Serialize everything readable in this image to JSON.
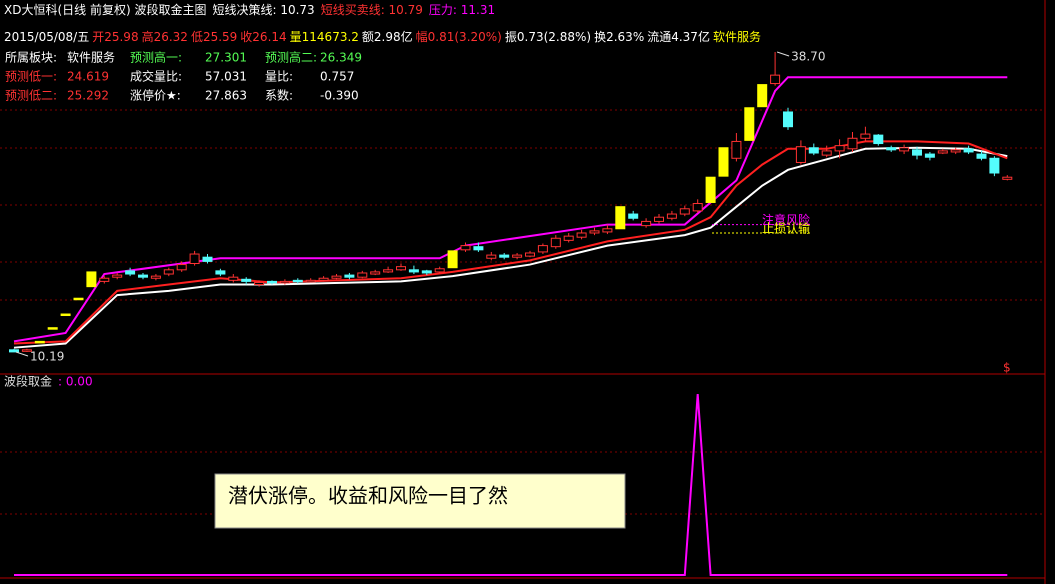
{
  "header": {
    "title": [
      {
        "text": "XD大恒科(日线 前复权) 波段取金主图",
        "color": "#ffffff"
      },
      {
        "text": "短线决策线: 10.73",
        "color": "#ffffff"
      },
      {
        "text": "短线买卖线: 10.79",
        "color": "#ff3232"
      },
      {
        "text": "压力: 11.31",
        "color": "#ff00ff"
      }
    ],
    "info": [
      {
        "text": "2015/05/08/五",
        "color": "#ffffff"
      },
      {
        "text": "开25.98",
        "color": "#ff3232"
      },
      {
        "text": "高26.32",
        "color": "#ff3232"
      },
      {
        "text": "低25.59",
        "color": "#ff3232"
      },
      {
        "text": "收26.14",
        "color": "#ff3232"
      },
      {
        "text": "量114673.2",
        "color": "#ffff00"
      },
      {
        "text": "额2.98亿",
        "color": "#ffffff"
      },
      {
        "text": "幅0.81(3.20%)",
        "color": "#ff3232"
      },
      {
        "text": "振0.73(2.88%)",
        "color": "#ffffff"
      },
      {
        "text": "换2.63%",
        "color": "#ffffff"
      },
      {
        "text": "流通4.37亿",
        "color": "#ffffff"
      },
      {
        "text": "软件服务",
        "color": "#ffff00"
      }
    ],
    "table": [
      [
        {
          "label": "所属板块:",
          "value": "软件服务",
          "color": "#ffffff"
        },
        {
          "label": "预测高一:",
          "value": "27.301",
          "color": "#54fc54"
        },
        {
          "label": "预测高二:",
          "value": "26.349",
          "color": "#54fc54"
        }
      ],
      [
        {
          "label": "预测低一:",
          "value": "24.619",
          "color": "#ff3232"
        },
        {
          "label": "成交量比:",
          "value": "57.031",
          "color": "#ffffff"
        },
        {
          "label": "量比:",
          "value": "0.757",
          "color": "#ffffff"
        }
      ],
      [
        {
          "label": "预测低二:",
          "value": "25.292",
          "color": "#ff3232"
        },
        {
          "label": "涨停价★:",
          "value": "27.863",
          "color": "#ffffff"
        },
        {
          "label": "系数:",
          "value": "-0.390",
          "color": "#ffffff"
        }
      ]
    ],
    "note": "潜伏涨停。收益和风险一目了然"
  },
  "chart_data": [
    {
      "type": "candlestick",
      "ylim": [
        8.48,
        43.64
      ],
      "up_color": "#ff3232",
      "down_color": "#54fcfc",
      "signal_color": "#ffff00",
      "signals": [
        2,
        3,
        4,
        5,
        6,
        34,
        47,
        54,
        55,
        57,
        58
      ],
      "open": [
        10.4,
        10.3,
        11.2,
        12.5,
        13.8,
        15.3,
        16.4,
        16.9,
        17.3,
        17.9,
        17.5,
        17.2,
        17.6,
        18.0,
        18.6,
        19.2,
        17.9,
        17.0,
        17.1,
        16.6,
        16.9,
        16.8,
        17.0,
        16.9,
        17.0,
        17.2,
        17.5,
        17.3,
        17.6,
        17.8,
        18.0,
        18.0,
        17.9,
        17.8,
        18.2,
        19.9,
        20.2,
        19.1,
        19.4,
        19.2,
        19.3,
        19.7,
        20.2,
        20.8,
        21.1,
        21.5,
        21.6,
        21.9,
        23.3,
        22.2,
        22.6,
        22.9,
        23.3,
        23.6,
        24.4,
        26.9,
        28.6,
        30.3,
        33.5,
        35.7,
        33.0,
        28.2,
        29.6,
        28.9,
        29.3,
        29.5,
        30.5,
        30.8,
        29.6,
        29.3,
        29.4,
        29.0,
        29.1,
        29.2,
        29.5,
        29.0,
        28.6,
        26.6
      ],
      "high": [
        10.5,
        10.5,
        11.2,
        12.5,
        13.8,
        15.3,
        17.8,
        17.4,
        17.7,
        18.2,
        17.7,
        17.6,
        18.2,
        18.8,
        19.8,
        19.5,
        18.1,
        17.6,
        17.3,
        17.0,
        17.0,
        17.1,
        17.2,
        17.2,
        17.4,
        17.6,
        17.7,
        17.9,
        18.0,
        18.3,
        18.6,
        18.4,
        18.0,
        18.3,
        19.8,
        20.6,
        20.6,
        19.7,
        19.6,
        19.6,
        19.8,
        20.5,
        21.3,
        21.5,
        21.8,
        22.0,
        22.3,
        24.0,
        23.6,
        22.9,
        23.3,
        23.6,
        24.1,
        24.7,
        26.8,
        29.6,
        31.0,
        33.4,
        35.6,
        38.7,
        33.4,
        30.3,
        30.0,
        29.8,
        30.4,
        31.1,
        31.6,
        30.9,
        29.8,
        29.9,
        29.7,
        29.2,
        29.5,
        29.6,
        29.8,
        29.3,
        28.8,
        27.0
      ],
      "low": [
        10.19,
        10.2,
        11.2,
        12.5,
        13.8,
        15.3,
        16.4,
        16.7,
        17.1,
        17.4,
        17.1,
        17.0,
        17.4,
        17.8,
        18.4,
        18.6,
        17.4,
        16.8,
        16.6,
        16.4,
        16.6,
        16.6,
        16.7,
        16.8,
        16.9,
        17.1,
        17.1,
        17.2,
        17.5,
        17.7,
        17.9,
        17.6,
        17.5,
        17.7,
        18.2,
        19.7,
        19.7,
        18.9,
        19.0,
        19.0,
        19.2,
        19.5,
        20.0,
        20.6,
        20.9,
        21.3,
        21.4,
        21.9,
        22.7,
        22.0,
        22.4,
        22.7,
        23.1,
        23.4,
        24.4,
        26.9,
        28.3,
        30.3,
        33.5,
        35.5,
        31.3,
        28.0,
        28.9,
        28.7,
        28.6,
        29.2,
        30.2,
        29.8,
        29.2,
        29.0,
        28.5,
        28.4,
        29.0,
        29.0,
        29.0,
        28.4,
        26.9,
        26.5
      ],
      "close": [
        10.2,
        10.4,
        11.2,
        12.5,
        13.8,
        15.3,
        17.8,
        17.2,
        17.5,
        17.6,
        17.3,
        17.4,
        18.0,
        18.5,
        19.5,
        18.8,
        17.6,
        17.3,
        16.9,
        16.8,
        16.8,
        16.9,
        16.9,
        17.0,
        17.2,
        17.4,
        17.3,
        17.7,
        17.8,
        18.0,
        18.3,
        17.8,
        17.7,
        18.1,
        19.8,
        20.3,
        19.9,
        19.4,
        19.2,
        19.4,
        19.6,
        20.3,
        21.0,
        21.2,
        21.5,
        21.7,
        21.9,
        24.0,
        22.9,
        22.6,
        23.0,
        23.3,
        23.8,
        24.3,
        26.8,
        29.6,
        30.2,
        33.4,
        35.6,
        36.5,
        31.6,
        29.7,
        29.1,
        29.3,
        29.8,
        30.5,
        30.9,
        30.0,
        29.4,
        29.6,
        28.9,
        28.7,
        29.3,
        29.4,
        29.2,
        28.6,
        27.2,
        26.8
      ],
      "lines": [
        {
          "color": "#ffffff",
          "x": [
            0,
            4,
            8,
            12,
            16,
            20,
            30,
            34,
            40,
            46,
            52,
            54,
            56,
            58,
            60,
            63,
            66,
            70,
            74,
            77
          ],
          "values": [
            10.6,
            11.0,
            15.6,
            16.0,
            16.6,
            16.6,
            16.9,
            17.4,
            18.5,
            20.3,
            21.3,
            22.0,
            24.0,
            26.0,
            27.5,
            28.5,
            29.5,
            29.6,
            29.5,
            28.8
          ]
        },
        {
          "color": "#ff2020",
          "x": [
            0,
            4,
            8,
            12,
            16,
            20,
            30,
            34,
            40,
            46,
            52,
            54,
            56,
            58,
            60,
            63,
            66,
            70,
            74,
            77
          ],
          "values": [
            11.0,
            11.2,
            16.0,
            16.6,
            17.2,
            16.8,
            17.2,
            17.8,
            18.9,
            20.7,
            21.8,
            23.0,
            26.0,
            28.0,
            29.5,
            29.5,
            30.2,
            30.2,
            30.0,
            28.6
          ]
        },
        {
          "color": "#ff00ff",
          "x": [
            0,
            4,
            7,
            16,
            33,
            35,
            46,
            52,
            56,
            59,
            60,
            77
          ],
          "values": [
            11.2,
            12.0,
            17.6,
            19.1,
            19.1,
            20.3,
            22.3,
            22.3,
            26.5,
            35.0,
            36.3,
            36.3
          ]
        }
      ],
      "annotations": [
        {
          "x": 59,
          "value": 38.7,
          "label": "38.70"
        },
        {
          "x": 0,
          "value": 10.19
        }
      ],
      "levels": [
        {
          "text": "注意风险",
          "value": 22.3,
          "color": "#ff00ff"
        },
        {
          "text": "止损认输",
          "value": 21.5,
          "color": "#ffff00"
        }
      ]
    },
    {
      "type": "line",
      "title": "波段取金",
      "value_label": ": 0.00",
      "color": "#ff00ff",
      "ylim": [
        0,
        105
      ],
      "x": [
        0,
        52,
        53,
        54,
        77
      ],
      "values": [
        0,
        0,
        100,
        0,
        0
      ]
    }
  ]
}
